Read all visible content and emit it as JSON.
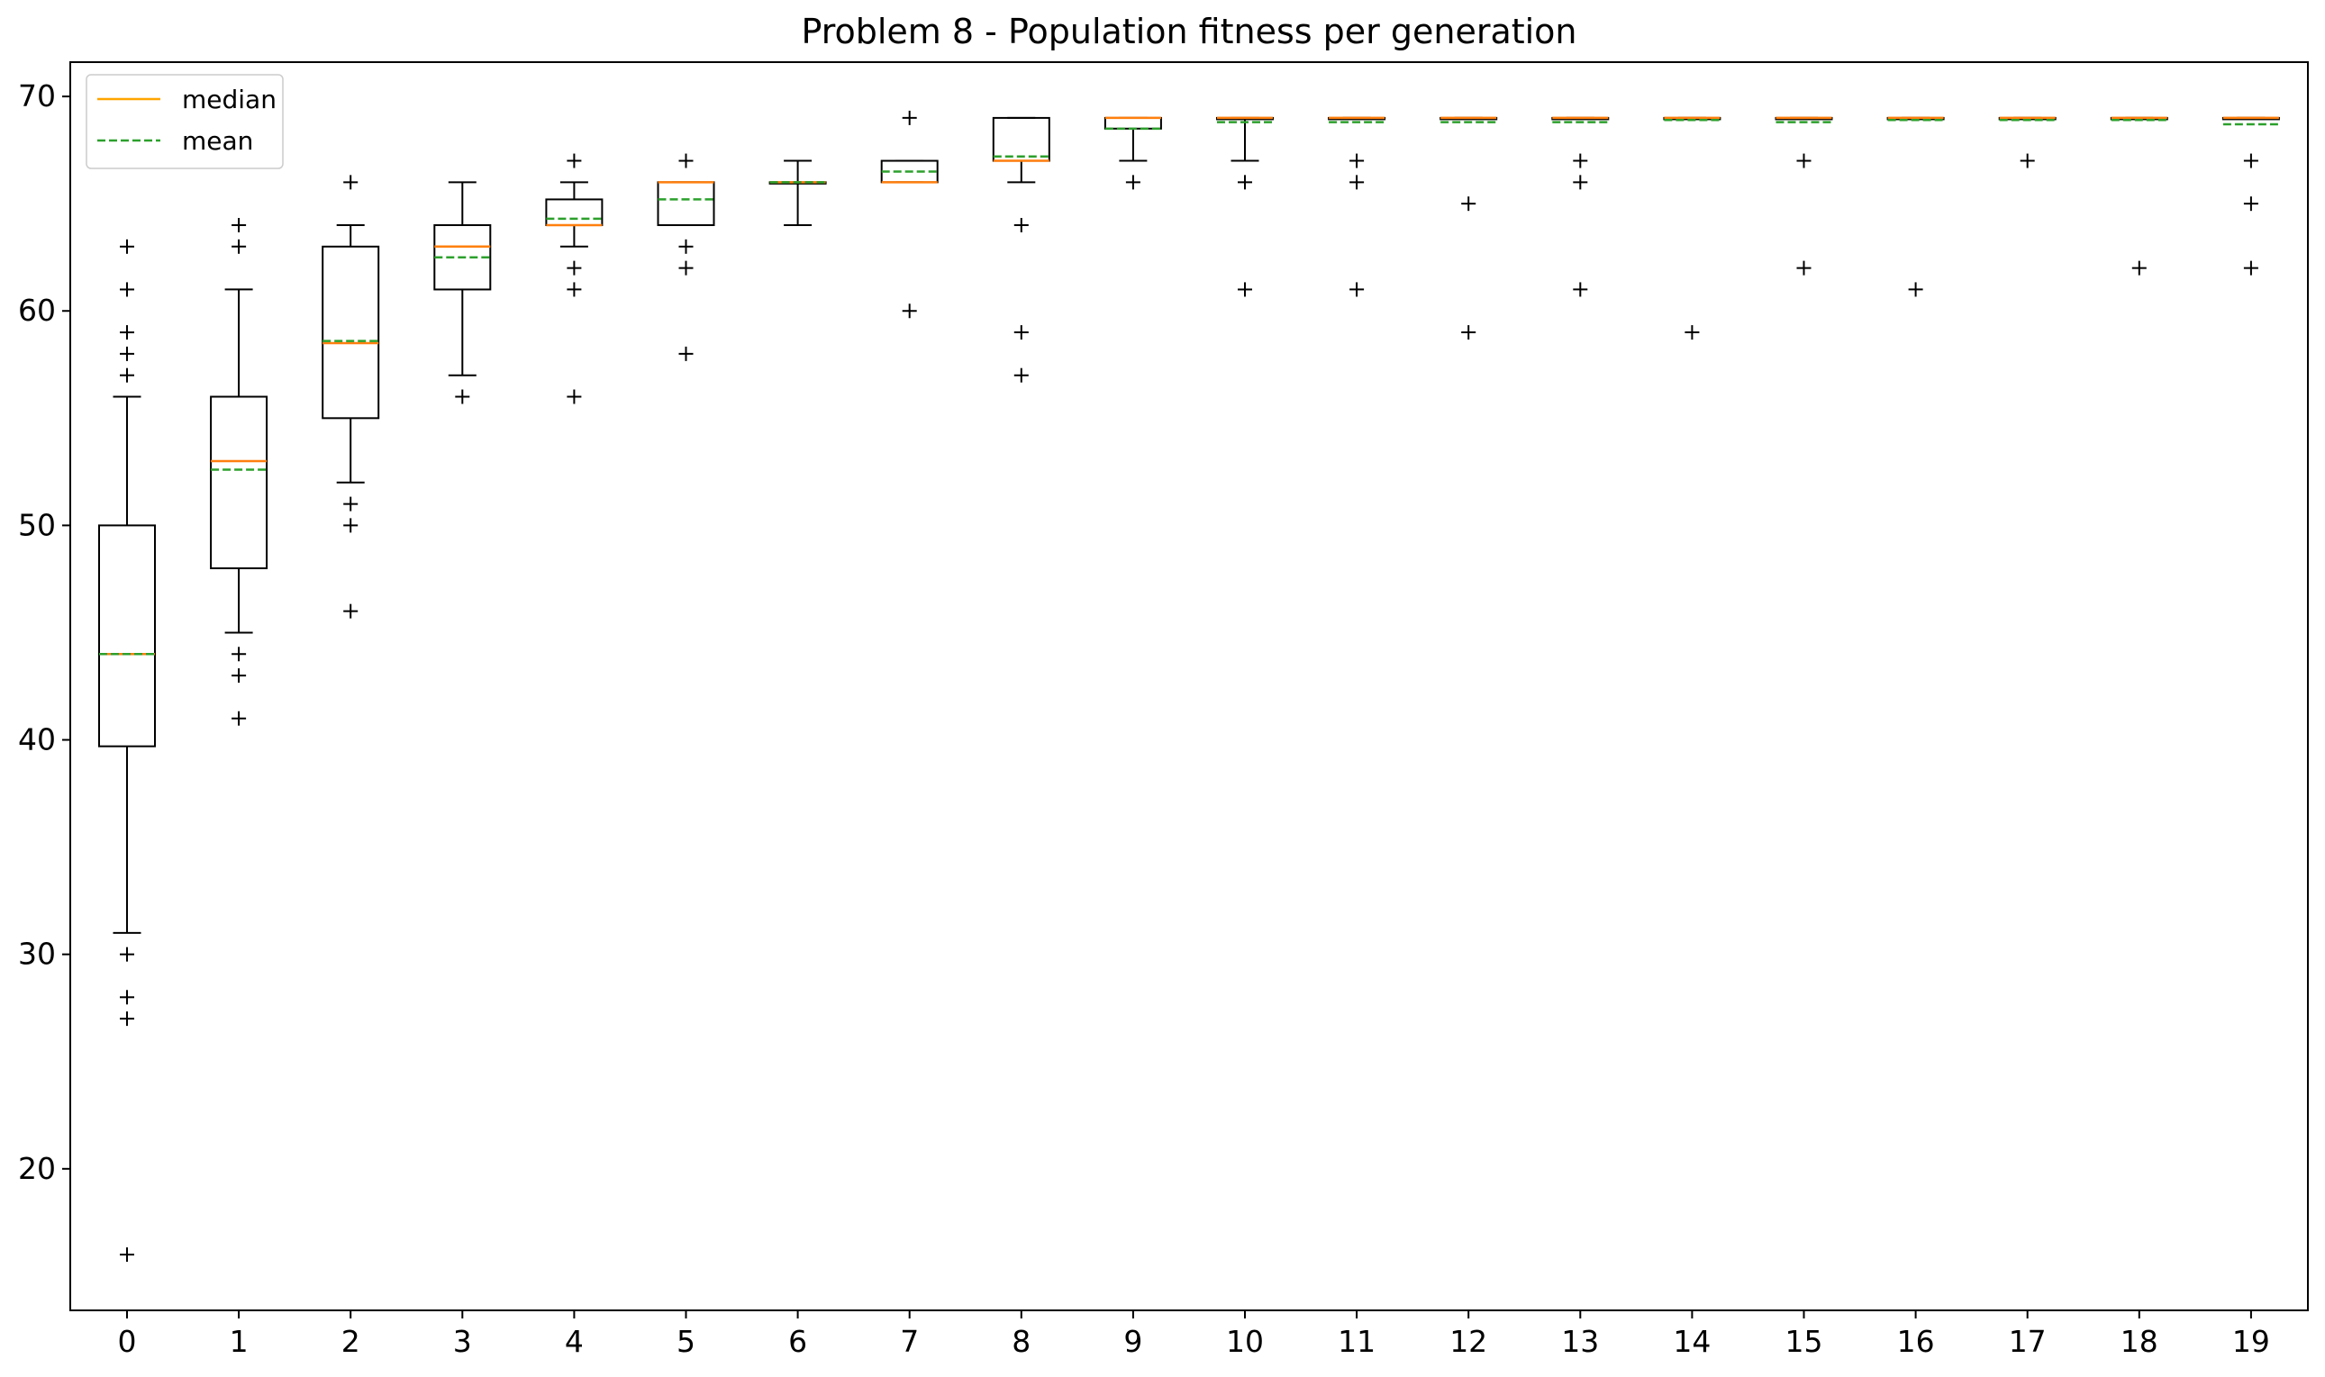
{
  "chart_data": {
    "type": "box",
    "title": "Problem 8 - Population fitness per generation",
    "xlabel": "",
    "ylabel": "",
    "categories": [
      "0",
      "1",
      "2",
      "3",
      "4",
      "5",
      "6",
      "7",
      "8",
      "9",
      "10",
      "11",
      "12",
      "13",
      "14",
      "15",
      "16",
      "17",
      "18",
      "19"
    ],
    "yticks": [
      "20",
      "30",
      "40",
      "50",
      "60",
      "70"
    ],
    "ylim": [
      13.4,
      71.6
    ],
    "grid": false,
    "legend": {
      "position": "top-left",
      "entries": [
        {
          "label": "median",
          "style": "solid",
          "color": "#ff7f0e"
        },
        {
          "label": "mean",
          "style": "dashed",
          "color": "#2ca02c"
        }
      ]
    },
    "colors": {
      "median": "#ff7f0e",
      "mean": "#2ca02c",
      "box": "#000000",
      "legend_median": "#ffa500"
    },
    "boxes": [
      {
        "x": "0",
        "whislo": 31,
        "q1": 39.7,
        "median": 44,
        "mean": 44,
        "q3": 50,
        "whishi": 56,
        "fliers": [
          63,
          61,
          59,
          58,
          57,
          30,
          28,
          27,
          16
        ]
      },
      {
        "x": "1",
        "whislo": 45,
        "q1": 48,
        "median": 53,
        "mean": 52.6,
        "q3": 56,
        "whishi": 61,
        "fliers": [
          64,
          63,
          44,
          43,
          41
        ]
      },
      {
        "x": "2",
        "whislo": 52,
        "q1": 55,
        "median": 58.5,
        "mean": 58.6,
        "q3": 63,
        "whishi": 64,
        "fliers": [
          66,
          51,
          50,
          46
        ]
      },
      {
        "x": "3",
        "whislo": 57,
        "q1": 61,
        "median": 63,
        "mean": 62.5,
        "q3": 64,
        "whishi": 66,
        "fliers": [
          56
        ]
      },
      {
        "x": "4",
        "whislo": 63,
        "q1": 64,
        "median": 64,
        "mean": 64.3,
        "q3": 65.2,
        "whishi": 66,
        "fliers": [
          67,
          62,
          61,
          56
        ]
      },
      {
        "x": "5",
        "whislo": 64,
        "q1": 64,
        "median": 66,
        "mean": 65.2,
        "q3": 66,
        "whishi": 66,
        "fliers": [
          67,
          63,
          62,
          58
        ]
      },
      {
        "x": "6",
        "whislo": 64,
        "q1": 66,
        "median": 66,
        "mean": 66,
        "q3": 66,
        "whishi": 67,
        "fliers": []
      },
      {
        "x": "7",
        "whislo": 66,
        "q1": 66,
        "median": 66,
        "mean": 66.5,
        "q3": 67,
        "whishi": 67,
        "fliers": [
          69,
          60
        ]
      },
      {
        "x": "8",
        "whislo": 66,
        "q1": 67,
        "median": 67,
        "mean": 67.2,
        "q3": 69,
        "whishi": 69,
        "fliers": [
          64,
          59,
          57
        ]
      },
      {
        "x": "9",
        "whislo": 67,
        "q1": 68.5,
        "median": 69,
        "mean": 68.5,
        "q3": 69,
        "whishi": 69,
        "fliers": [
          66
        ]
      },
      {
        "x": "10",
        "whislo": 67,
        "q1": 69,
        "median": 69,
        "mean": 68.8,
        "q3": 69,
        "whishi": 69,
        "fliers": [
          66,
          61
        ]
      },
      {
        "x": "11",
        "whislo": 69,
        "q1": 69,
        "median": 69,
        "mean": 68.8,
        "q3": 69,
        "whishi": 69,
        "fliers": [
          67,
          66,
          61
        ]
      },
      {
        "x": "12",
        "whislo": 69,
        "q1": 69,
        "median": 69,
        "mean": 68.8,
        "q3": 69,
        "whishi": 69,
        "fliers": [
          65,
          59
        ]
      },
      {
        "x": "13",
        "whislo": 69,
        "q1": 69,
        "median": 69,
        "mean": 68.8,
        "q3": 69,
        "whishi": 69,
        "fliers": [
          67,
          66,
          61
        ]
      },
      {
        "x": "14",
        "whislo": 69,
        "q1": 69,
        "median": 69,
        "mean": 68.9,
        "q3": 69,
        "whishi": 69,
        "fliers": [
          59
        ]
      },
      {
        "x": "15",
        "whislo": 69,
        "q1": 69,
        "median": 69,
        "mean": 68.8,
        "q3": 69,
        "whishi": 69,
        "fliers": [
          67,
          62
        ]
      },
      {
        "x": "16",
        "whislo": 69,
        "q1": 69,
        "median": 69,
        "mean": 68.9,
        "q3": 69,
        "whishi": 69,
        "fliers": [
          61
        ]
      },
      {
        "x": "17",
        "whislo": 69,
        "q1": 69,
        "median": 69,
        "mean": 68.9,
        "q3": 69,
        "whishi": 69,
        "fliers": [
          67
        ]
      },
      {
        "x": "18",
        "whislo": 69,
        "q1": 69,
        "median": 69,
        "mean": 68.9,
        "q3": 69,
        "whishi": 69,
        "fliers": [
          62
        ]
      },
      {
        "x": "19",
        "whislo": 69,
        "q1": 69,
        "median": 69,
        "mean": 68.7,
        "q3": 69,
        "whishi": 69,
        "fliers": [
          67,
          65,
          62
        ]
      }
    ]
  }
}
